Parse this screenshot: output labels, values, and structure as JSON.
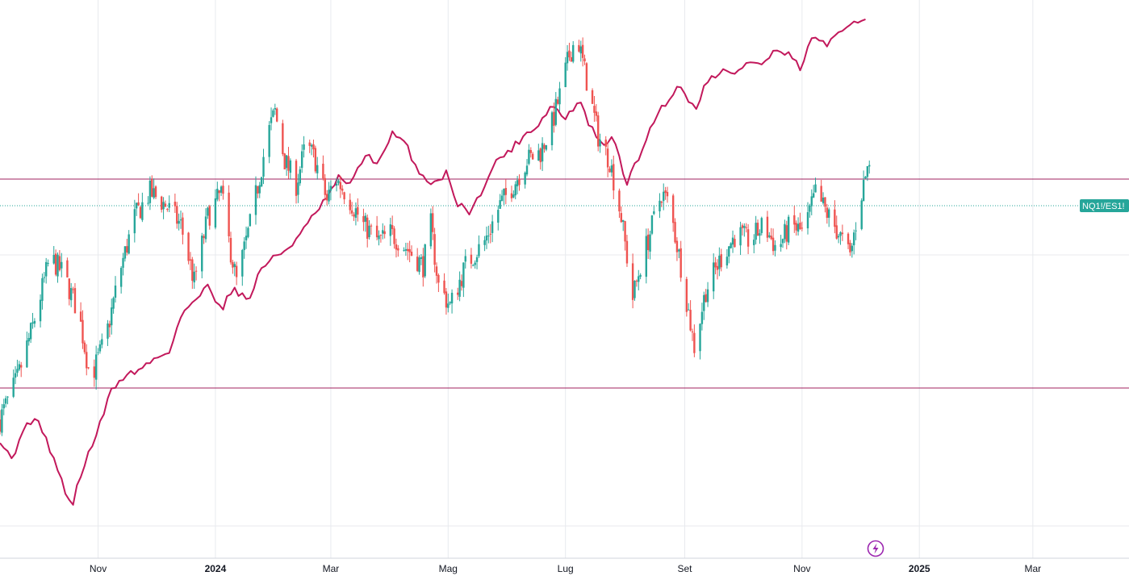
{
  "chart_data": {
    "type": "candlestick",
    "symbol_label": "NQ1!/ES1!",
    "x_axis": {
      "ticks": [
        {
          "date": "2023-11-01",
          "label": "Nov",
          "bold": false
        },
        {
          "date": "2024-01-01",
          "label": "2024",
          "bold": true
        },
        {
          "date": "2024-03-01",
          "label": "Mar",
          "bold": false
        },
        {
          "date": "2024-05-01",
          "label": "Mag",
          "bold": false
        },
        {
          "date": "2024-07-01",
          "label": "Lug",
          "bold": false
        },
        {
          "date": "2024-09-01",
          "label": "Set",
          "bold": false
        },
        {
          "date": "2024-11-01",
          "label": "Nov",
          "bold": false
        },
        {
          "date": "2025-01-01",
          "label": "2025",
          "bold": true
        },
        {
          "date": "2025-03-01",
          "label": "Mar",
          "bold": false
        }
      ],
      "range": [
        "2023-09-11",
        "2025-04-20"
      ]
    },
    "grid": true,
    "horizontal_lines": [
      {
        "level": "upper",
        "color": "#a0205f"
      },
      {
        "level": "lower",
        "color": "#a0205f"
      }
    ],
    "dotted_line_color": "#26a69a",
    "colors": {
      "up": "#26a69a",
      "down": "#ef5350",
      "overlay": "#c2185b",
      "grid": "#e8eaee"
    },
    "anchors": {
      "candles": [
        [
          "2023-09-11",
          0.02
        ],
        [
          "2023-09-20",
          0.12
        ],
        [
          "2023-09-28",
          0.25
        ],
        [
          "2023-10-07",
          0.42
        ],
        [
          "2023-10-14",
          0.38
        ],
        [
          "2023-10-22",
          0.28
        ],
        [
          "2023-10-28",
          0.12
        ],
        [
          "2023-11-05",
          0.22
        ],
        [
          "2023-11-12",
          0.38
        ],
        [
          "2023-11-20",
          0.52
        ],
        [
          "2023-11-28",
          0.58
        ],
        [
          "2023-12-06",
          0.55
        ],
        [
          "2023-12-14",
          0.5
        ],
        [
          "2023-12-21",
          0.36
        ],
        [
          "2023-12-28",
          0.52
        ],
        [
          "2024-01-04",
          0.58
        ],
        [
          "2024-01-08",
          0.46
        ],
        [
          "2024-01-12",
          0.36
        ],
        [
          "2024-01-19",
          0.5
        ],
        [
          "2024-01-24",
          0.62
        ],
        [
          "2024-01-28",
          0.72
        ],
        [
          "2024-02-01",
          0.78
        ],
        [
          "2024-02-06",
          0.66
        ],
        [
          "2024-02-12",
          0.6
        ],
        [
          "2024-02-17",
          0.7
        ],
        [
          "2024-02-22",
          0.66
        ],
        [
          "2024-02-28",
          0.56
        ],
        [
          "2024-03-03",
          0.62
        ],
        [
          "2024-03-10",
          0.57
        ],
        [
          "2024-03-18",
          0.5
        ],
        [
          "2024-03-26",
          0.46
        ],
        [
          "2024-04-01",
          0.48
        ],
        [
          "2024-04-10",
          0.44
        ],
        [
          "2024-04-18",
          0.4
        ],
        [
          "2024-04-22",
          0.5
        ],
        [
          "2024-04-26",
          0.35
        ],
        [
          "2024-05-02",
          0.3
        ],
        [
          "2024-05-10",
          0.4
        ],
        [
          "2024-05-20",
          0.46
        ],
        [
          "2024-05-28",
          0.55
        ],
        [
          "2024-06-04",
          0.6
        ],
        [
          "2024-06-11",
          0.66
        ],
        [
          "2024-06-18",
          0.68
        ],
        [
          "2024-06-24",
          0.75
        ],
        [
          "2024-06-28",
          0.82
        ],
        [
          "2024-07-03",
          0.92
        ],
        [
          "2024-07-07",
          0.97
        ],
        [
          "2024-07-11",
          0.88
        ],
        [
          "2024-07-18",
          0.72
        ],
        [
          "2024-07-24",
          0.66
        ],
        [
          "2024-07-30",
          0.52
        ],
        [
          "2024-08-05",
          0.32
        ],
        [
          "2024-08-09",
          0.4
        ],
        [
          "2024-08-14",
          0.48
        ],
        [
          "2024-08-20",
          0.58
        ],
        [
          "2024-08-24",
          0.55
        ],
        [
          "2024-08-30",
          0.4
        ],
        [
          "2024-09-06",
          0.2
        ],
        [
          "2024-09-12",
          0.34
        ],
        [
          "2024-09-20",
          0.42
        ],
        [
          "2024-09-28",
          0.48
        ],
        [
          "2024-10-05",
          0.46
        ],
        [
          "2024-10-12",
          0.5
        ],
        [
          "2024-10-19",
          0.44
        ],
        [
          "2024-10-26",
          0.5
        ],
        [
          "2024-11-02",
          0.48
        ],
        [
          "2024-11-08",
          0.58
        ],
        [
          "2024-11-15",
          0.52
        ],
        [
          "2024-11-20",
          0.48
        ],
        [
          "2024-11-26",
          0.42
        ],
        [
          "2024-12-01",
          0.56
        ],
        [
          "2024-12-06",
          0.66
        ]
      ],
      "overlay": [
        [
          "2023-09-11",
          0.14
        ],
        [
          "2023-09-18",
          0.1
        ],
        [
          "2023-09-25",
          0.18
        ],
        [
          "2023-10-02",
          0.17
        ],
        [
          "2023-10-09",
          0.1
        ],
        [
          "2023-10-18",
          0.0
        ],
        [
          "2023-10-24",
          0.08
        ],
        [
          "2023-11-01",
          0.16
        ],
        [
          "2023-11-08",
          0.24
        ],
        [
          "2023-11-15",
          0.27
        ],
        [
          "2023-11-22",
          0.28
        ],
        [
          "2023-11-29",
          0.3
        ],
        [
          "2023-12-08",
          0.32
        ],
        [
          "2023-12-15",
          0.4
        ],
        [
          "2023-12-22",
          0.42
        ],
        [
          "2023-12-28",
          0.46
        ],
        [
          "2024-01-04",
          0.4
        ],
        [
          "2024-01-10",
          0.45
        ],
        [
          "2024-01-18",
          0.42
        ],
        [
          "2024-01-25",
          0.49
        ],
        [
          "2024-02-01",
          0.51
        ],
        [
          "2024-02-08",
          0.53
        ],
        [
          "2024-02-15",
          0.56
        ],
        [
          "2024-02-22",
          0.6
        ],
        [
          "2024-02-28",
          0.63
        ],
        [
          "2024-03-05",
          0.67
        ],
        [
          "2024-03-12",
          0.66
        ],
        [
          "2024-03-19",
          0.72
        ],
        [
          "2024-03-26",
          0.7
        ],
        [
          "2024-04-02",
          0.76
        ],
        [
          "2024-04-09",
          0.74
        ],
        [
          "2024-04-16",
          0.68
        ],
        [
          "2024-04-23",
          0.66
        ],
        [
          "2024-04-30",
          0.68
        ],
        [
          "2024-05-06",
          0.62
        ],
        [
          "2024-05-13",
          0.6
        ],
        [
          "2024-05-20",
          0.66
        ],
        [
          "2024-05-27",
          0.71
        ],
        [
          "2024-06-03",
          0.73
        ],
        [
          "2024-06-10",
          0.76
        ],
        [
          "2024-06-17",
          0.78
        ],
        [
          "2024-06-24",
          0.82
        ],
        [
          "2024-07-01",
          0.79
        ],
        [
          "2024-07-08",
          0.83
        ],
        [
          "2024-07-12",
          0.79
        ],
        [
          "2024-07-19",
          0.74
        ],
        [
          "2024-07-26",
          0.75
        ],
        [
          "2024-08-02",
          0.66
        ],
        [
          "2024-08-09",
          0.72
        ],
        [
          "2024-08-16",
          0.79
        ],
        [
          "2024-08-23",
          0.83
        ],
        [
          "2024-08-30",
          0.86
        ],
        [
          "2024-09-06",
          0.81
        ],
        [
          "2024-09-13",
          0.87
        ],
        [
          "2024-09-20",
          0.89
        ],
        [
          "2024-09-27",
          0.88
        ],
        [
          "2024-10-04",
          0.91
        ],
        [
          "2024-10-11",
          0.9
        ],
        [
          "2024-10-18",
          0.93
        ],
        [
          "2024-10-25",
          0.92
        ],
        [
          "2024-11-01",
          0.89
        ],
        [
          "2024-11-06",
          0.96
        ],
        [
          "2024-11-13",
          0.94
        ],
        [
          "2024-11-20",
          0.96
        ],
        [
          "2024-11-27",
          0.99
        ],
        [
          "2024-12-05",
          1.0
        ]
      ]
    }
  }
}
